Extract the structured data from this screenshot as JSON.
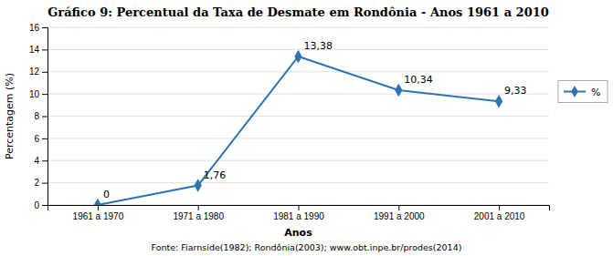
{
  "chart_data": {
    "type": "line",
    "title": "Gráfico 9: Percentual da Taxa de Desmate em Rondônia - Anos 1961 a 2010",
    "xlabel": "Anos",
    "ylabel": "Percentagem (%)",
    "categories": [
      "1961 a 1970",
      "1971 a 1980",
      "1981 a 1990",
      "1991 a 2000",
      "2001 a 2010"
    ],
    "series": [
      {
        "name": "%",
        "color": "#2E74B5",
        "marker": "diamond",
        "values": [
          0,
          1.76,
          13.38,
          10.34,
          9.33
        ],
        "value_labels": [
          "0",
          "1,76",
          "13,38",
          "10,34",
          "9,33"
        ]
      }
    ],
    "data_labels": true,
    "ylim": [
      0,
      16
    ],
    "yticks": [
      0,
      2,
      4,
      6,
      8,
      10,
      12,
      14,
      16
    ],
    "grid": true,
    "legend": "right",
    "source": "Fonte: Fiarnside(1982); Rondônia(2003); www.obt.inpe.br/prodes(2014)"
  }
}
